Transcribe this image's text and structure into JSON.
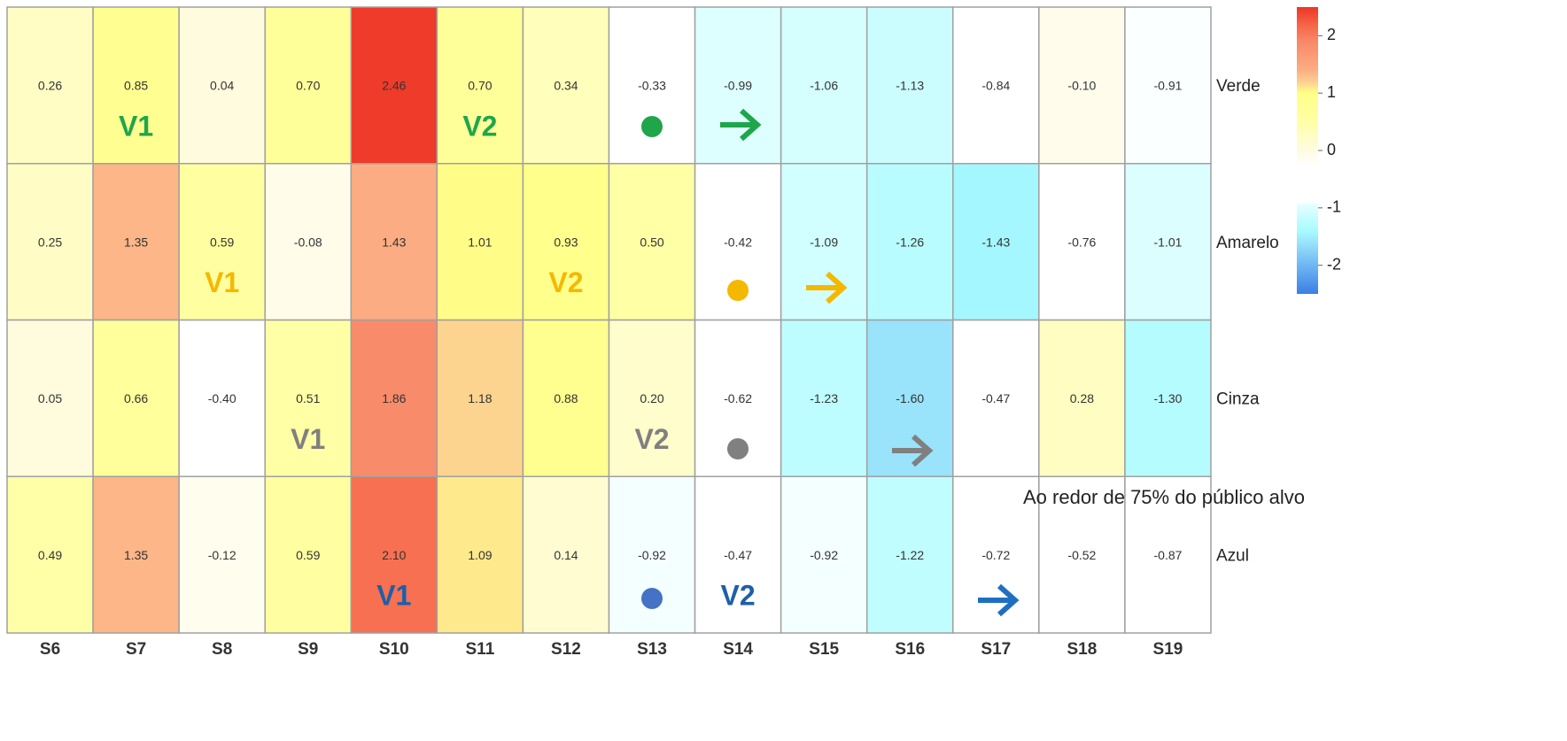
{
  "chart_data": {
    "type": "heatmap",
    "columns": [
      "S6",
      "S7",
      "S8",
      "S9",
      "S10",
      "S11",
      "S12",
      "S13",
      "S14",
      "S15",
      "S16",
      "S17",
      "S18",
      "S19"
    ],
    "rows": [
      "Verde",
      "Amarelo",
      "Cinza",
      "Azul"
    ],
    "values": [
      [
        0.26,
        0.85,
        0.04,
        0.7,
        2.46,
        0.7,
        0.34,
        -0.33,
        -0.99,
        -1.06,
        -1.13,
        -0.84,
        -0.1,
        -0.91
      ],
      [
        0.25,
        1.35,
        0.59,
        -0.08,
        1.43,
        1.01,
        0.93,
        0.5,
        -0.42,
        -1.09,
        -1.26,
        -1.43,
        -0.76,
        -1.01
      ],
      [
        0.05,
        0.66,
        -0.4,
        0.51,
        1.86,
        1.18,
        0.88,
        0.2,
        -0.62,
        -1.23,
        -1.6,
        -0.47,
        0.28,
        -1.3
      ],
      [
        0.49,
        1.35,
        -0.12,
        0.59,
        2.1,
        1.09,
        0.14,
        -0.92,
        -0.47,
        -0.92,
        -1.22,
        -0.72,
        -0.52,
        -0.87
      ]
    ],
    "value_labels": [
      [
        "0.26",
        "0.85",
        "0.04",
        "0.70",
        "2.46",
        "0.70",
        "0.34",
        "-0.33",
        "-0.99",
        "-1.06",
        "-1.13",
        "-0.84",
        "-0.10",
        "-0.91"
      ],
      [
        "0.25",
        "1.35",
        "0.59",
        "-0.08",
        "1.43",
        "1.01",
        "0.93",
        "0.50",
        "-0.42",
        "-1.09",
        "-1.26",
        "-1.43",
        "-0.76",
        "-1.01"
      ],
      [
        "0.05",
        "0.66",
        "-0.40",
        "0.51",
        "1.86",
        "1.18",
        "0.88",
        "0.20",
        "-0.62",
        "-1.23",
        "-1.60",
        "-0.47",
        "0.28",
        "-1.30"
      ],
      [
        "0.49",
        "1.35",
        "-0.12",
        "0.59",
        "2.10",
        "1.09",
        "0.14",
        "-0.92",
        "-0.47",
        "-0.92",
        "-1.22",
        "-0.72",
        "-0.52",
        "-0.87"
      ]
    ],
    "zlim": [
      -2.5,
      2.5
    ],
    "zticks": [
      2,
      1,
      0,
      -1,
      -2
    ],
    "colorscale": [
      [
        -2.5,
        "#3a7fe6"
      ],
      [
        -1.6,
        "#99e3fb"
      ],
      [
        -1.4,
        "#a6fbff"
      ],
      [
        -0.95,
        "#e4ffff"
      ],
      [
        -0.9,
        "#ffffff"
      ],
      [
        -0.3,
        "#ffffff"
      ],
      [
        0,
        "#fffbe3"
      ],
      [
        0.5,
        "#ffffa6"
      ],
      [
        1.0,
        "#ffff88"
      ],
      [
        1.2,
        "#fdcf90"
      ],
      [
        1.4,
        "#fbae84"
      ],
      [
        1.9,
        "#f88868"
      ],
      [
        2.2,
        "#f56446"
      ],
      [
        2.5,
        "#ee3526"
      ]
    ],
    "annotations": [
      {
        "text": "V1",
        "row": "Verde",
        "column": "S7",
        "color": "#1fa64a"
      },
      {
        "text": "V2",
        "row": "Verde",
        "column": "S11",
        "color": "#1fa64a"
      },
      {
        "text": "V1",
        "row": "Amarelo",
        "column": "S8",
        "color": "#f5b800"
      },
      {
        "text": "V2",
        "row": "Amarelo",
        "column": "S12",
        "color": "#f5b800"
      },
      {
        "text": "V1",
        "row": "Cinza",
        "column": "S9",
        "color": "#808080"
      },
      {
        "text": "V2",
        "row": "Cinza",
        "column": "S13",
        "color": "#808080"
      },
      {
        "text": "V1",
        "row": "Azul",
        "column": "S10",
        "color": "#1f5fa8"
      },
      {
        "text": "V2",
        "row": "Azul",
        "column": "S14",
        "color": "#1f5fa8"
      }
    ],
    "note": "Ao redor de 75% do público alvo"
  }
}
